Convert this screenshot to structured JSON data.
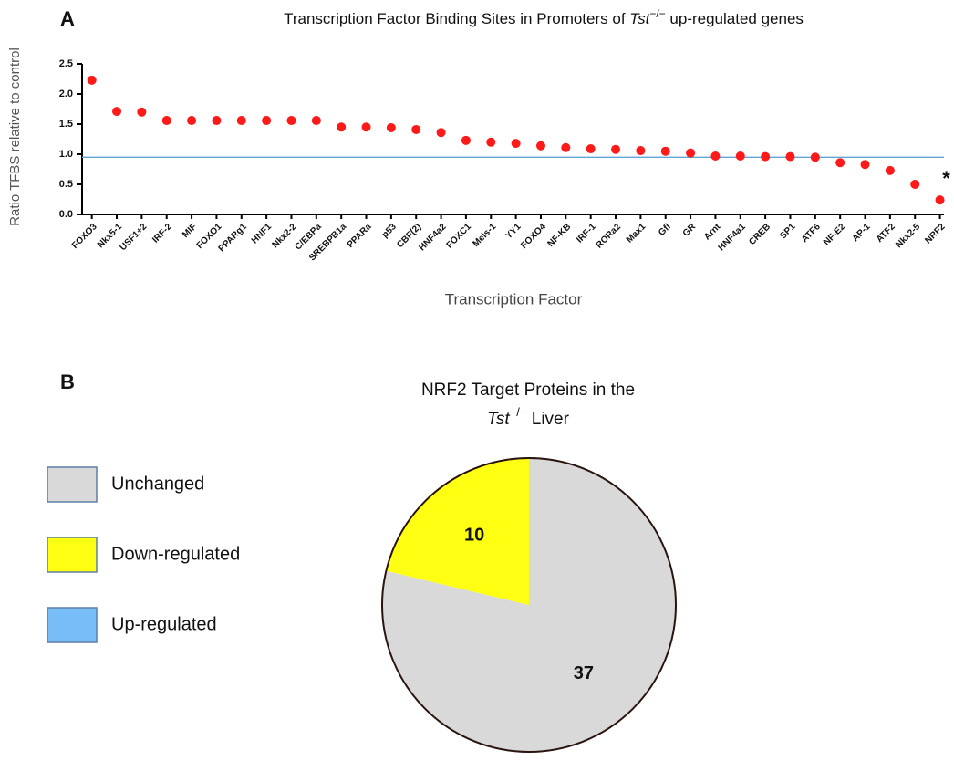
{
  "chart_data": [
    {
      "type": "dot",
      "panel": "A",
      "title": [
        "Transcription Factor Binding Sites in Promoters of ",
        "Tst",
        "−/−",
        " up-regulated genes"
      ],
      "ylabel": "Ratio TFBS relative to control",
      "xlabel": "Transcription Factor",
      "categories": [
        "FOXO3",
        "Nkx5-1",
        "USF1+2",
        "IRF-2",
        "MIF",
        "FOXO1",
        "PPARg1",
        "HNF1",
        "Nkx2-2",
        "C/EBPa",
        "SREBPB1a",
        "PPARa",
        "p53",
        "CBF(2)",
        "HNF4a2",
        "FOXC1",
        "Meis-1",
        "YY1",
        "FOXO4",
        "NF-KB",
        "IRF-1",
        "RORa2",
        "Max1",
        "Gfi",
        "GR",
        "Arnt",
        "HNF4a1",
        "CREB",
        "SP1",
        "ATF6",
        "NF-E2",
        "AP-1",
        "ATF2",
        "Nkx2-5",
        "NRF2"
      ],
      "values": [
        2.23,
        1.71,
        1.7,
        1.56,
        1.56,
        1.56,
        1.56,
        1.56,
        1.56,
        1.56,
        1.45,
        1.45,
        1.44,
        1.41,
        1.36,
        1.23,
        1.2,
        1.18,
        1.14,
        1.11,
        1.09,
        1.08,
        1.06,
        1.05,
        1.02,
        0.97,
        0.97,
        0.96,
        0.96,
        0.95,
        0.86,
        0.83,
        0.73,
        0.5,
        0.24
      ],
      "color": "#ff1a1a",
      "ylim": [
        0,
        2.5
      ],
      "yticks": [
        {
          "value": 0,
          "label": "0.0"
        },
        0.5,
        {
          "value": 1,
          "label": "1.0"
        },
        1.5,
        {
          "value": 2,
          "label": "2.0"
        },
        2.5
      ],
      "reference_line": 0.95,
      "reference_color": "#5fa6d6",
      "annotation": "*"
    },
    {
      "type": "pie",
      "panel": "B",
      "title": [
        [
          "NRF2 Target Proteins in the"
        ],
        [
          "Tst",
          "−/−",
          " Liver"
        ]
      ],
      "categories": [
        "Unchanged",
        "Down-regulated",
        "Up-regulated"
      ],
      "values": [
        37,
        10,
        0
      ],
      "colors": [
        "#d9d9d9",
        "#ffff14",
        "#78bdf8"
      ]
    }
  ]
}
